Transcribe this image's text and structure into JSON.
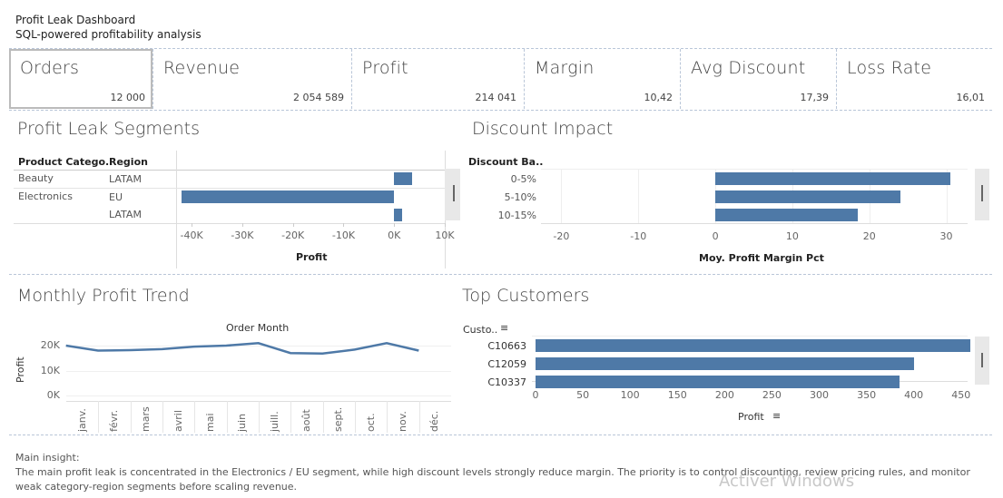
{
  "header": {
    "title": "Profit Leak Dashboard",
    "subtitle": "SQL-powered profitability analysis"
  },
  "kpis": [
    {
      "label": "Orders",
      "value": "12 000"
    },
    {
      "label": "Revenue",
      "value": "2 054 589"
    },
    {
      "label": "Profit",
      "value": "214 041"
    },
    {
      "label": "Margin",
      "value": "10,42"
    },
    {
      "label": "Avg Discount",
      "value": "17,39"
    },
    {
      "label": "Loss Rate",
      "value": "16,01"
    }
  ],
  "segments": {
    "title": "Profit Leak Segments",
    "col1_header": "Product Catego..",
    "col2_header": "Region",
    "rows": [
      {
        "category": "Beauty",
        "region": "LATAM"
      },
      {
        "category": "Electronics",
        "region": "EU"
      },
      {
        "category": "",
        "region": "LATAM"
      }
    ],
    "axis_label": "Profit",
    "ticks": [
      "-40K",
      "-30K",
      "-20K",
      "-10K",
      "0K",
      "10K"
    ]
  },
  "discount": {
    "title": "Discount Impact",
    "col_header": "Discount Ba..",
    "rows": [
      "0-5%",
      "5-10%",
      "10-15%"
    ],
    "axis_label": "Moy. Profit Margin Pct",
    "ticks": [
      "-20",
      "-10",
      "0",
      "10",
      "20",
      "30"
    ]
  },
  "trend": {
    "title": "Monthly Profit Trend",
    "header": "Order Month",
    "ylabel": "Profit",
    "yticks": [
      "20K",
      "10K",
      "0K"
    ],
    "months": [
      "janv.",
      "févr.",
      "mars",
      "avril",
      "mai",
      "juin",
      "juill.",
      "août",
      "sept.",
      "oct.",
      "nov.",
      "déc."
    ]
  },
  "customers": {
    "title": "Top Customers",
    "col_header": "Custo..",
    "rows": [
      "C10663",
      "C12059",
      "C10337"
    ],
    "axis_label": "Profit",
    "ticks": [
      "0",
      "50",
      "100",
      "150",
      "200",
      "250",
      "300",
      "350",
      "400",
      "450"
    ]
  },
  "insight": {
    "label": "Main insight:",
    "text": "The main profit leak is concentrated in the Electronics / EU segment, while high discount levels strongly reduce margin. The priority is to control discounting, review pricing rules, and monitor weak category-region segments before scaling revenue."
  },
  "watermark": "Activer Windows",
  "colors": {
    "bar": "#4e79a7",
    "line": "#4e79a7",
    "divider": "#b9c6d8"
  },
  "chart_data": [
    {
      "type": "bar",
      "title": "Profit Leak Segments",
      "categories": [
        "Beauty / LATAM",
        "Electronics / EU",
        "Electronics / LATAM"
      ],
      "values": [
        3500,
        -42000,
        1500
      ],
      "xlabel": "Profit",
      "xlim": [
        -42000,
        10000
      ]
    },
    {
      "type": "bar",
      "title": "Discount Impact",
      "categories": [
        "0-5%",
        "5-10%",
        "10-15%"
      ],
      "values": [
        30.5,
        24,
        18.5
      ],
      "xlabel": "Moy. Profit Margin Pct",
      "xlim": [
        -25,
        33
      ]
    },
    {
      "type": "line",
      "title": "Monthly Profit Trend",
      "x": [
        "janv.",
        "févr.",
        "mars",
        "avril",
        "mai",
        "juin",
        "juill.",
        "août",
        "sept.",
        "oct.",
        "nov.",
        "déc."
      ],
      "values": [
        20000,
        18000,
        18200,
        18600,
        19600,
        20000,
        21000,
        17000,
        16800,
        18400,
        21000,
        18000
      ],
      "ylabel": "Profit",
      "ylim": [
        0,
        24000
      ]
    },
    {
      "type": "bar",
      "title": "Top Customers",
      "categories": [
        "C10663",
        "C12059",
        "C10337"
      ],
      "values": [
        460,
        400,
        385
      ],
      "xlabel": "Profit",
      "xlim": [
        0,
        480
      ]
    }
  ]
}
